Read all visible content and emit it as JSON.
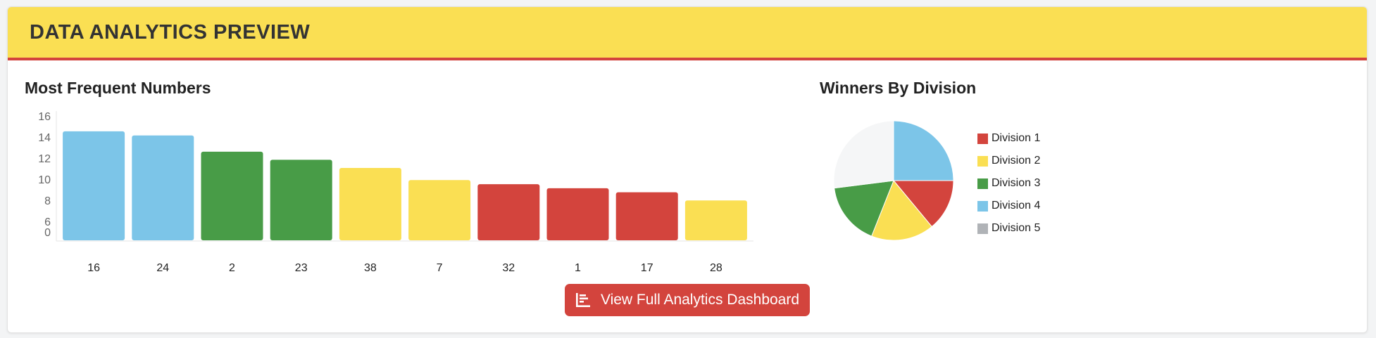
{
  "header": {
    "title": "DATA ANALYTICS PREVIEW"
  },
  "bar_section": {
    "title": "Most Frequent Numbers"
  },
  "pie_section": {
    "title": "Winners By Division"
  },
  "button": {
    "label": "View Full Analytics Dashboard",
    "icon": "chart-bar-icon"
  },
  "colors": {
    "header_bg": "#fadf53",
    "accent": "#d3443d",
    "blue": "#7cc5e8",
    "green": "#489c47",
    "yellow": "#fadf53",
    "red": "#d3443d",
    "gray": "#b0b3b7",
    "pie_remainder": "#f5f6f7"
  },
  "chart_data": [
    {
      "type": "bar",
      "title": "Most Frequent Numbers",
      "categories": [
        "16",
        "24",
        "2",
        "23",
        "38",
        "7",
        "32",
        "1",
        "17",
        "28"
      ],
      "values": [
        13.5,
        13,
        11,
        10,
        9,
        7.5,
        7,
        6.5,
        6,
        5
      ],
      "bar_colors": [
        "#7cc5e8",
        "#7cc5e8",
        "#489c47",
        "#489c47",
        "#fadf53",
        "#fadf53",
        "#d3443d",
        "#d3443d",
        "#d3443d",
        "#fadf53"
      ],
      "y_ticks": [
        "16",
        "14",
        "12",
        "10",
        "8",
        "6",
        "0"
      ],
      "ylim": [
        0,
        16
      ],
      "grid": false,
      "legend": false
    },
    {
      "type": "pie",
      "title": "Winners By Division",
      "labels": [
        "Division 1",
        "Division 2",
        "Division 3",
        "Division 4",
        "Division 5"
      ],
      "values": [
        14,
        17,
        17,
        25,
        0
      ],
      "remainder": 27,
      "slice_colors": [
        "#d3443d",
        "#fadf53",
        "#489c47",
        "#7cc5e8",
        "#b0b3b7"
      ],
      "legend": "right"
    }
  ]
}
